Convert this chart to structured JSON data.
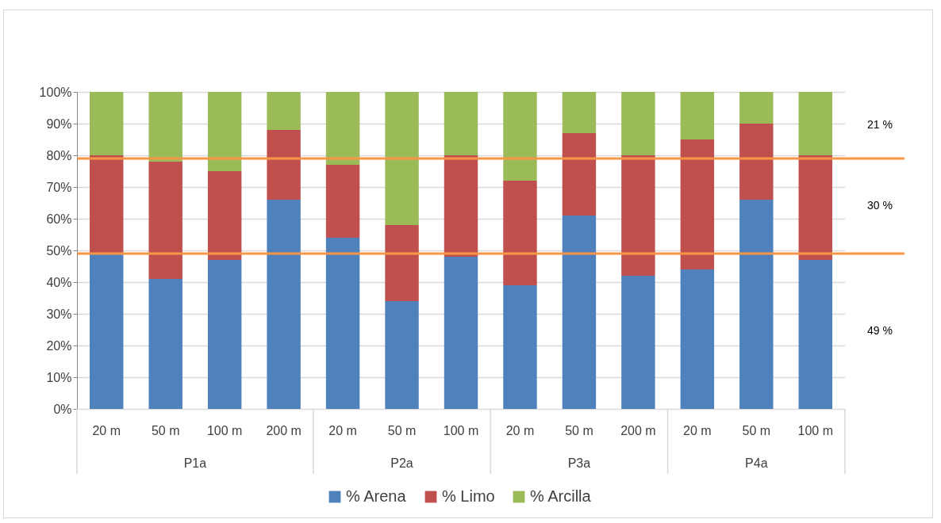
{
  "chart_data": {
    "type": "bar",
    "stacked": true,
    "categories": [
      "20 m",
      "50 m",
      "100 m",
      "200 m",
      "20 m",
      "50 m",
      "100 m",
      "20 m",
      "50 m",
      "200 m",
      "20 m",
      "50 m",
      "100 m"
    ],
    "series": [
      {
        "name": "% Arena",
        "color": "#4f81bd",
        "values": [
          49,
          41,
          47,
          66,
          54,
          34,
          48,
          39,
          61,
          42,
          44,
          66,
          47
        ]
      },
      {
        "name": "% Limo",
        "color": "#c0504d",
        "values": [
          31,
          37,
          28,
          22,
          23,
          24,
          32,
          33,
          26,
          38,
          41,
          24,
          33
        ]
      },
      {
        "name": "% Arcilla",
        "color": "#9bbb59",
        "values": [
          20,
          22,
          25,
          12,
          23,
          42,
          20,
          28,
          13,
          20,
          15,
          10,
          20
        ]
      }
    ],
    "ylim": [
      0,
      100
    ],
    "yticks": [
      {
        "value": 0,
        "label": "0%"
      },
      {
        "value": 10,
        "label": "10%"
      },
      {
        "value": 20,
        "label": "20%"
      },
      {
        "value": 30,
        "label": "30%"
      },
      {
        "value": 40,
        "label": "40%"
      },
      {
        "value": 50,
        "label": "50%"
      },
      {
        "value": 60,
        "label": "60%"
      },
      {
        "value": 70,
        "label": "70%"
      },
      {
        "value": 80,
        "label": "80%"
      },
      {
        "value": 90,
        "label": "90%"
      },
      {
        "value": 100,
        "label": "100%"
      }
    ],
    "grid": "y",
    "legend": "bottom",
    "ref_lines": [
      {
        "axis": "y",
        "value": 79,
        "color": "#f79646"
      },
      {
        "axis": "y",
        "value": 49,
        "color": "#f79646"
      }
    ],
    "annotations": [
      "P1a",
      "P2a",
      "P3a",
      "P4a",
      "21 %",
      "30 %",
      "49 %"
    ]
  }
}
